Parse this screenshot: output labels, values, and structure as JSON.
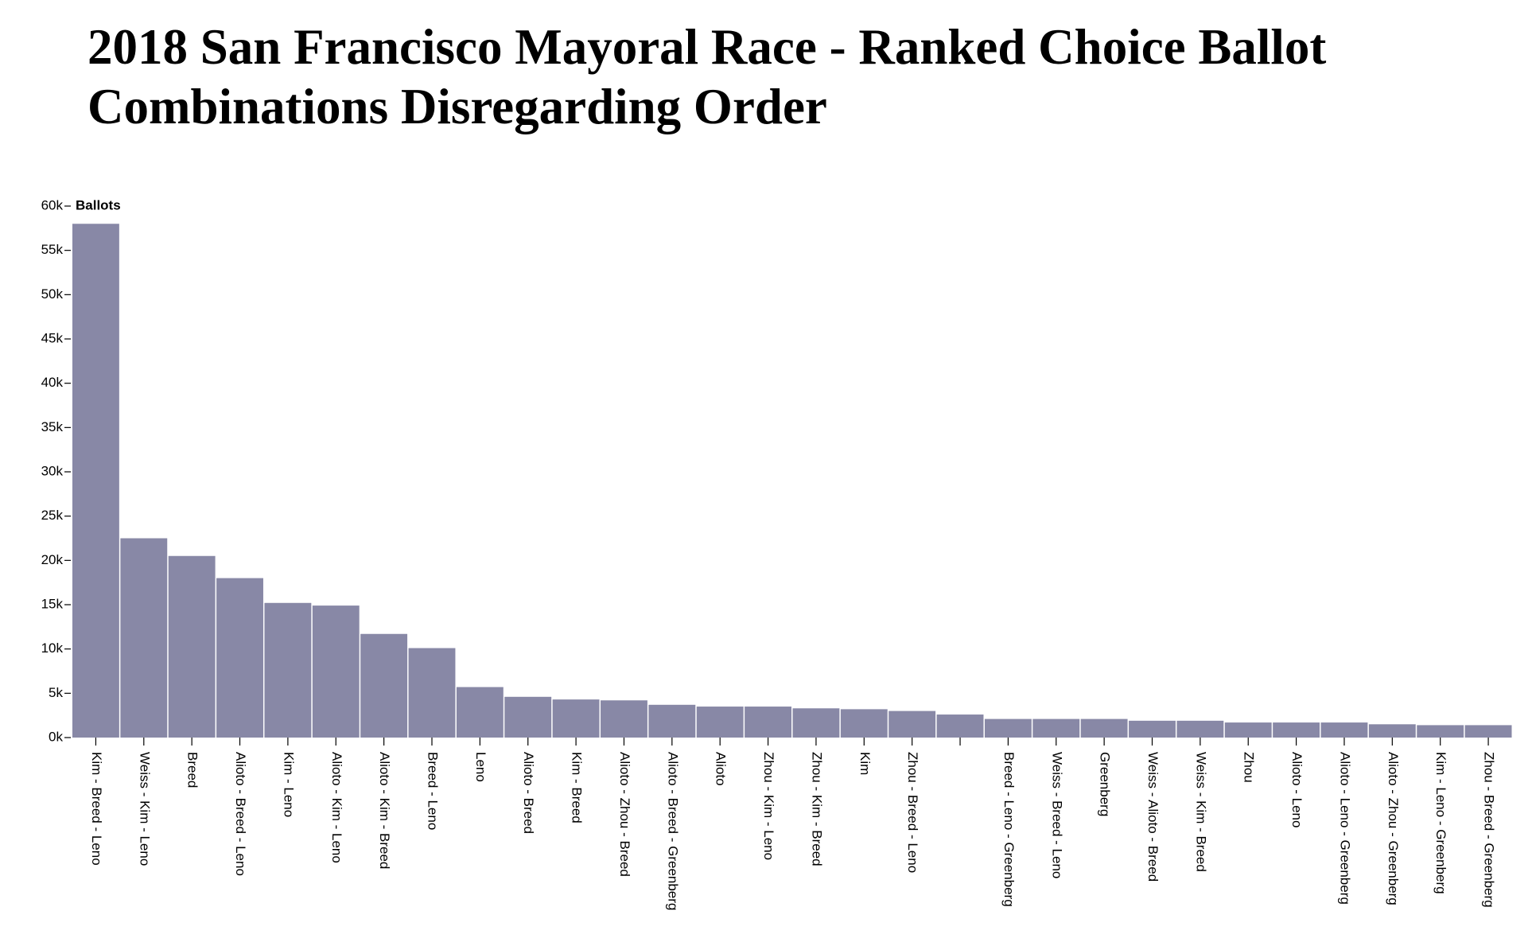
{
  "chart_data": {
    "type": "bar",
    "title": "2018 San Francisco Mayoral Race - Ranked Choice Ballot Combinations Disregarding Order",
    "xlabel": "",
    "ylabel": "Ballots",
    "ylim": [
      0,
      60000
    ],
    "yticks": [
      {
        "value": 0,
        "label": "0k"
      },
      {
        "value": 5000,
        "label": "5k"
      },
      {
        "value": 10000,
        "label": "10k"
      },
      {
        "value": 15000,
        "label": "15k"
      },
      {
        "value": 20000,
        "label": "20k"
      },
      {
        "value": 25000,
        "label": "25k"
      },
      {
        "value": 30000,
        "label": "30k"
      },
      {
        "value": 35000,
        "label": "35k"
      },
      {
        "value": 40000,
        "label": "40k"
      },
      {
        "value": 45000,
        "label": "45k"
      },
      {
        "value": 50000,
        "label": "50k"
      },
      {
        "value": 55000,
        "label": "55k"
      },
      {
        "value": 60000,
        "label": "60k"
      }
    ],
    "grid": false,
    "bar_color": "#8888a6",
    "categories": [
      "Kim - Breed - Leno",
      "Weiss - Kim - Leno",
      "Breed",
      "Alioto - Breed - Leno",
      "Kim - Leno",
      "Alioto - Kim - Leno",
      "Alioto - Kim - Breed",
      "Breed - Leno",
      "Leno",
      "Alioto - Breed",
      "Kim - Breed",
      "Alioto - Zhou - Breed",
      "Alioto - Breed - Greenberg",
      "Alioto",
      "Zhou - Kim - Leno",
      "Zhou - Kim - Breed",
      "Kim",
      "Zhou - Breed - Leno",
      "",
      "Breed - Leno - Greenberg",
      "Weiss - Breed - Leno",
      "Greenberg",
      "Weiss - Alioto - Breed",
      "Weiss - Kim - Breed",
      "Zhou",
      "Alioto - Leno",
      "Alioto - Leno - Greenberg",
      "Alioto - Zhou - Greenberg",
      "Kim - Leno - Greenberg",
      "Zhou - Breed - Greenberg"
    ],
    "values": [
      58000,
      22500,
      20500,
      18000,
      15200,
      14900,
      11700,
      10100,
      5700,
      4600,
      4300,
      4200,
      3700,
      3500,
      3500,
      3300,
      3200,
      3000,
      2600,
      2100,
      2100,
      2100,
      1900,
      1900,
      1700,
      1700,
      1700,
      1500,
      1400,
      1400
    ]
  }
}
